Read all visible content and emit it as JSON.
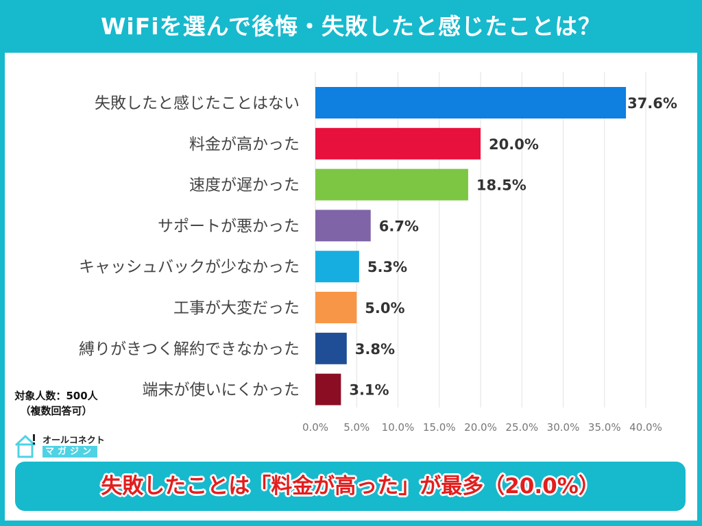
{
  "title": "WiFiを選んで後悔・失敗したと感じたことは？",
  "note": {
    "line1": "対象人数：500人",
    "line2": "（複数回答可）"
  },
  "logo": {
    "line1": "オールコネクト",
    "line2": "マガジン"
  },
  "summary": "失敗したことは「料金が高った」が最多（20.0%）",
  "chart_data": {
    "type": "bar",
    "orientation": "horizontal",
    "categories": [
      "失敗したと感じたことはない",
      "料金が高かった",
      "速度が遅かった",
      "サポートが悪かった",
      "キャッシュバックが少なかった",
      "工事が大変だった",
      "縛りがきつく解約できなかった",
      "端末が使いにくかった"
    ],
    "values": [
      37.6,
      20.0,
      18.5,
      6.7,
      5.3,
      5.0,
      3.8,
      3.1
    ],
    "data_labels": [
      "37.6%",
      "20.0%",
      "18.5%",
      "6.7%",
      "5.3%",
      "5.0%",
      "3.8%",
      "3.1%"
    ],
    "colors": [
      "#0f7fe0",
      "#e8103c",
      "#7cc644",
      "#8064a8",
      "#16aee0",
      "#f79646",
      "#1f4e96",
      "#8b0d23"
    ],
    "xlim": [
      0,
      40
    ],
    "xticks": [
      "0.0%",
      "5.0%",
      "10.0%",
      "15.0%",
      "20.0%",
      "25.0%",
      "30.0%",
      "35.0%",
      "40.0%"
    ],
    "grid": "vertical",
    "legend": "none"
  }
}
